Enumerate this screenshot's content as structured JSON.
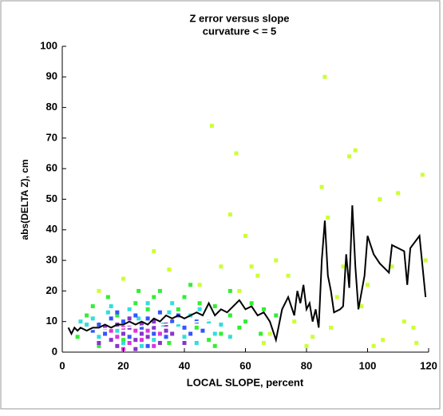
{
  "chart_data": {
    "type": "scatter",
    "title": "Z error versus slope",
    "subtitle": "curvature < = 5",
    "x_label": "LOCAL SLOPE, percent",
    "y_label": "abs(DELTA Z), cm",
    "xlim": [
      0,
      120
    ],
    "xticks": [
      0,
      20,
      40,
      60,
      80,
      100,
      120
    ],
    "ylim": [
      0,
      100
    ],
    "yticks": [
      0,
      10,
      20,
      30,
      40,
      50,
      60,
      70,
      80,
      90,
      100
    ],
    "series": [
      {
        "color": "#ccff33",
        "x": [
          49,
          57,
          86,
          96,
          94,
          85,
          118,
          104,
          110,
          55,
          60,
          74,
          87,
          92,
          100,
          112,
          115,
          105,
          82,
          70,
          64,
          58,
          90,
          98,
          119,
          102,
          80,
          66,
          62,
          52,
          45,
          30,
          35,
          20,
          12,
          68,
          76,
          88,
          108,
          116
        ],
        "values": [
          74,
          65,
          90,
          66,
          64,
          54,
          58,
          50,
          52,
          45,
          38,
          25,
          44,
          28,
          22,
          10,
          8,
          4,
          5,
          30,
          25,
          20,
          18,
          15,
          30,
          2,
          2,
          3,
          28,
          28,
          22,
          33,
          27,
          24,
          20,
          6,
          10,
          8,
          28,
          3
        ]
      },
      {
        "color": "#33ee33",
        "x": [
          10,
          15,
          25,
          30,
          40,
          45,
          50,
          55,
          60,
          20,
          35,
          48,
          52,
          58,
          65,
          8,
          42,
          38,
          28,
          18,
          62,
          55,
          70,
          44,
          5,
          12,
          32,
          24,
          50,
          66
        ],
        "values": [
          15,
          18,
          20,
          18,
          18,
          16,
          15,
          12,
          10,
          4,
          3,
          4,
          6,
          8,
          6,
          12,
          22,
          14,
          14,
          12,
          16,
          20,
          12,
          8,
          5,
          2,
          20,
          16,
          2,
          14
        ]
      },
      {
        "color": "#33dddd",
        "x": [
          10,
          15,
          22,
          28,
          35,
          42,
          48,
          50,
          40,
          30,
          20,
          12,
          8,
          25,
          33,
          45,
          38,
          18,
          26,
          52,
          44,
          16,
          36,
          6,
          55
        ],
        "values": [
          11,
          13,
          14,
          16,
          13,
          12,
          10,
          6,
          5,
          4,
          3,
          5,
          9,
          11,
          9,
          14,
          9,
          7,
          2,
          9,
          3,
          15,
          16,
          10,
          5
        ]
      },
      {
        "color": "#3355ff",
        "x": [
          12,
          16,
          20,
          24,
          28,
          32,
          36,
          40,
          44,
          30,
          22,
          14,
          26,
          34,
          18,
          38,
          42,
          10,
          46,
          28
        ],
        "values": [
          9,
          11,
          10,
          12,
          11,
          13,
          10,
          8,
          10,
          6,
          5,
          6,
          8,
          5,
          13,
          12,
          6,
          7,
          7,
          2
        ]
      },
      {
        "color": "#8833cc",
        "x": [
          14,
          18,
          22,
          26,
          30,
          34,
          20,
          24,
          28,
          16,
          32,
          36,
          12,
          40,
          22,
          26,
          30,
          18,
          24,
          34
        ],
        "values": [
          8,
          9,
          8,
          9,
          8,
          7,
          6,
          4,
          5,
          4,
          3,
          6,
          3,
          3,
          11,
          6,
          10,
          2,
          1,
          9
        ]
      },
      {
        "color": "#dd33dd",
        "x": [
          16,
          20,
          24,
          28,
          22,
          26,
          30,
          18,
          32,
          20
        ],
        "values": [
          7,
          8,
          7,
          7,
          3,
          4,
          2,
          5,
          6,
          1
        ]
      }
    ],
    "lines": [
      {
        "color": "#ffffff",
        "x": [
          2,
          10,
          20,
          30,
          40,
          50
        ],
        "values": [
          7,
          7.5,
          8,
          8.8,
          9.5,
          10.5
        ]
      },
      {
        "color": "#000000",
        "x": [
          2,
          3,
          4,
          5,
          6,
          8,
          10,
          12,
          14,
          16,
          18,
          20,
          22,
          24,
          26,
          28,
          30,
          32,
          34,
          36,
          38,
          40,
          42,
          44,
          46,
          48,
          50,
          52,
          54,
          56,
          58,
          60,
          62,
          64,
          66,
          68,
          70,
          72,
          74,
          76,
          77,
          78,
          79,
          80,
          81,
          82,
          83,
          84,
          85,
          86,
          87,
          88,
          89,
          91,
          92,
          93,
          94,
          95,
          96,
          97,
          99,
          100,
          102,
          104,
          106,
          107,
          108,
          110,
          112,
          113,
          114,
          117,
          119
        ],
        "values": [
          8,
          6,
          8,
          7,
          8,
          7,
          8,
          8,
          9,
          8,
          9,
          9,
          10,
          9,
          10,
          9,
          11,
          10,
          12,
          11,
          12,
          11,
          12,
          13,
          12,
          16,
          12,
          14,
          13,
          15,
          17,
          14,
          15,
          12,
          13,
          10,
          4,
          14,
          18,
          12,
          20,
          16,
          22,
          14,
          16,
          10,
          14,
          8,
          30,
          43,
          25,
          20,
          13,
          14,
          15,
          32,
          21,
          48,
          28,
          14,
          25,
          38,
          32,
          29,
          27,
          26,
          35,
          34,
          33,
          22,
          34,
          38,
          18
        ]
      }
    ]
  }
}
